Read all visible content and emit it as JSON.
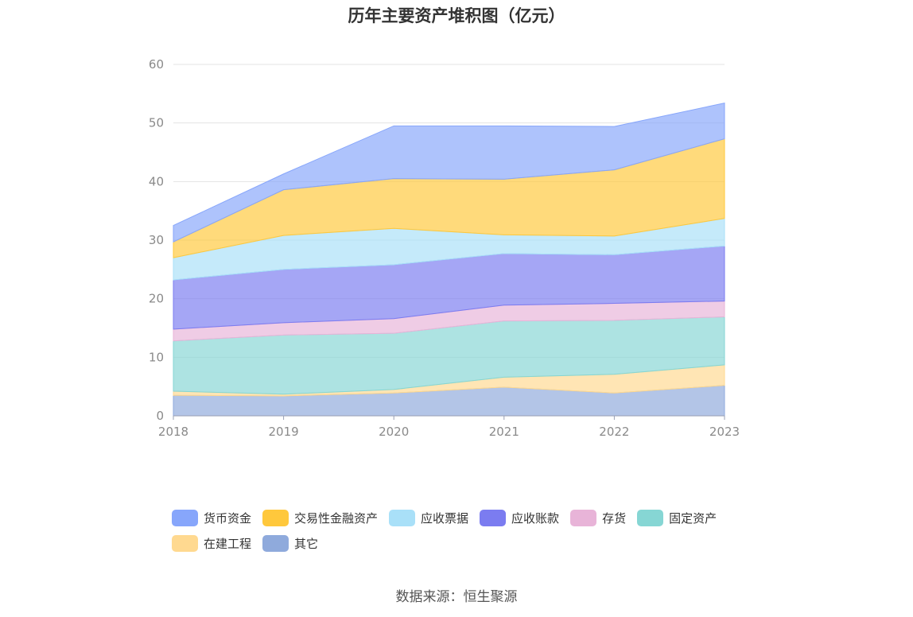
{
  "chart_data": {
    "type": "area",
    "stacked": true,
    "title": "历年主要资产堆积图（亿元）",
    "x": [
      "2018",
      "2019",
      "2020",
      "2021",
      "2022",
      "2023"
    ],
    "ylim": [
      0,
      60
    ],
    "yticks": [
      "0",
      "10",
      "20",
      "30",
      "40",
      "50",
      "60"
    ],
    "grid": true,
    "legend_position": "bottom",
    "series": [
      {
        "name": "其它",
        "color": "#8faadc",
        "values": [
          3.5,
          3.4,
          3.9,
          4.9,
          3.9,
          5.2
        ]
      },
      {
        "name": "在建工程",
        "color": "#ffd990",
        "values": [
          0.7,
          0.3,
          0.6,
          1.7,
          3.2,
          3.5
        ]
      },
      {
        "name": "固定资产",
        "color": "#86d6d4",
        "values": [
          8.6,
          10.1,
          9.6,
          9.6,
          9.2,
          8.2
        ]
      },
      {
        "name": "存货",
        "color": "#e8b4d8",
        "values": [
          2.0,
          2.1,
          2.5,
          2.7,
          2.9,
          2.7
        ]
      },
      {
        "name": "应收账款",
        "color": "#7b7cf0",
        "values": [
          8.4,
          9.1,
          9.2,
          8.8,
          8.3,
          9.4
        ]
      },
      {
        "name": "应收票据",
        "color": "#a9e0f8",
        "values": [
          3.8,
          5.8,
          6.2,
          3.2,
          3.2,
          4.7
        ]
      },
      {
        "name": "交易性金融资产",
        "color": "#ffc83c",
        "values": [
          2.7,
          7.8,
          8.5,
          9.5,
          11.3,
          13.6
        ]
      },
      {
        "name": "货币资金",
        "color": "#87a6fb",
        "values": [
          2.8,
          2.7,
          9.0,
          9.1,
          7.4,
          6.1
        ]
      }
    ],
    "legend_order": [
      "货币资金",
      "交易性金融资产",
      "应收票据",
      "应收账款",
      "存货",
      "固定资产",
      "在建工程",
      "其它"
    ]
  },
  "footer": {
    "source": "数据来源：恒生聚源"
  }
}
